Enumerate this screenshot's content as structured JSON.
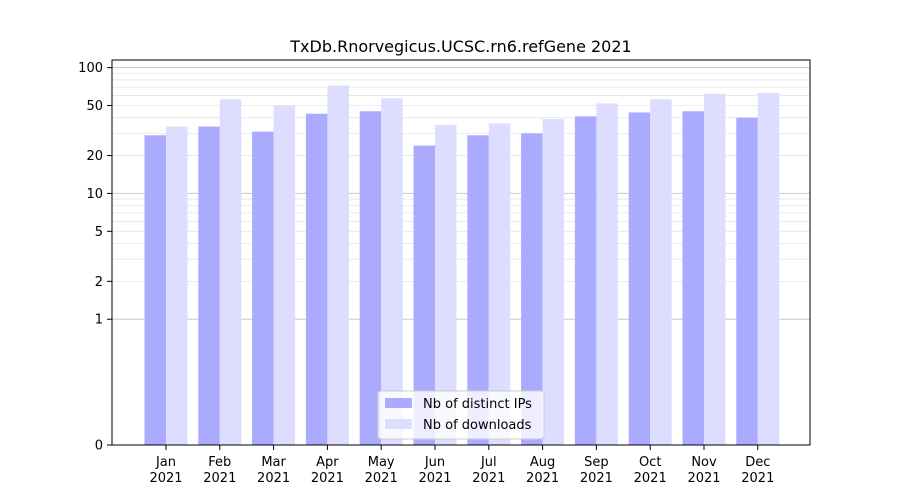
{
  "chart_data": {
    "type": "bar",
    "title": "TxDb.Rnorvegicus.UCSC.rn6.refGene 2021",
    "categories": [
      [
        "Jan",
        "2021"
      ],
      [
        "Feb",
        "2021"
      ],
      [
        "Mar",
        "2021"
      ],
      [
        "Apr",
        "2021"
      ],
      [
        "May",
        "2021"
      ],
      [
        "Jun",
        "2021"
      ],
      [
        "Jul",
        "2021"
      ],
      [
        "Aug",
        "2021"
      ],
      [
        "Sep",
        "2021"
      ],
      [
        "Oct",
        "2021"
      ],
      [
        "Nov",
        "2021"
      ],
      [
        "Dec",
        "2021"
      ]
    ],
    "series": [
      {
        "name": "Nb of distinct IPs",
        "color": "#aaaaff",
        "values": [
          29,
          34,
          31,
          43,
          45,
          24,
          29,
          30,
          41,
          44,
          45,
          40
        ]
      },
      {
        "name": "Nb of downloads",
        "color": "#ddddff",
        "values": [
          34,
          56,
          50,
          72,
          57,
          35,
          36,
          39,
          52,
          56,
          62,
          63
        ]
      }
    ],
    "y_ticks": [
      0,
      1,
      2,
      5,
      10,
      20,
      50,
      100
    ],
    "y_scale": "symlog",
    "ylim": [
      0,
      115
    ],
    "grid": true,
    "legend_position": "bottom-center"
  }
}
